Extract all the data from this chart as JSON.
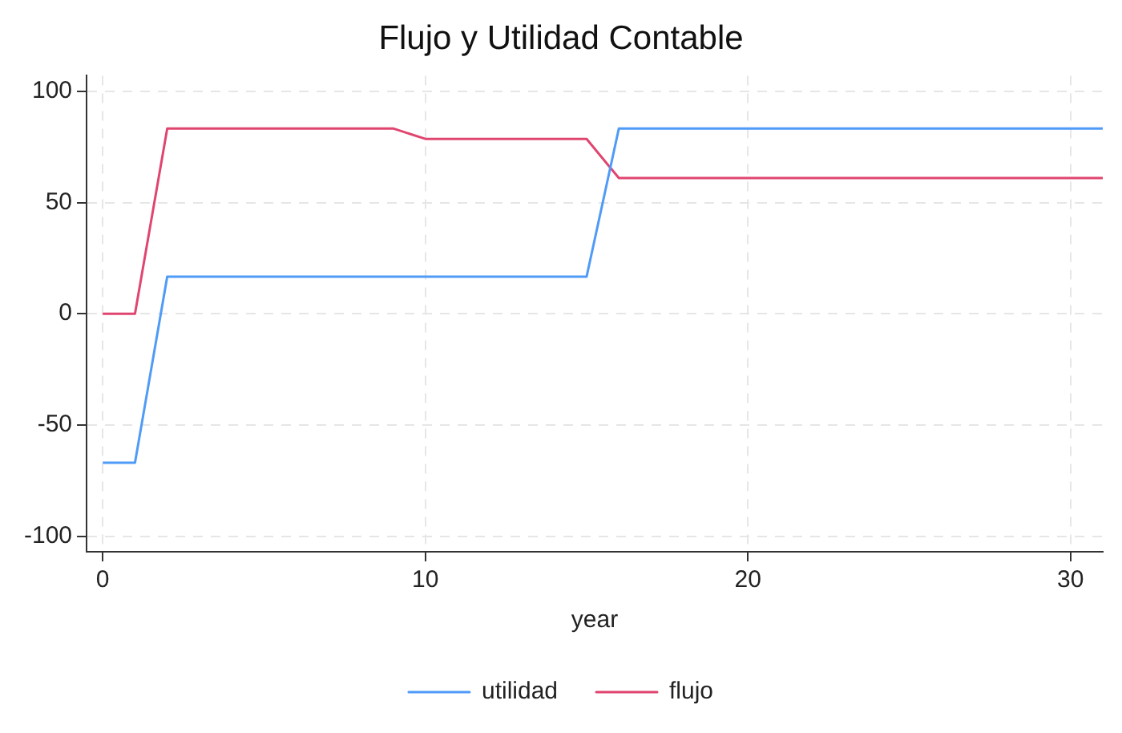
{
  "chart_data": {
    "type": "line",
    "title": "Flujo y Utilidad Contable",
    "xlabel": "year",
    "xlim": [
      -0.5,
      31
    ],
    "xticks": [
      0,
      10,
      20,
      30
    ],
    "ylim": [
      -107,
      107
    ],
    "yticks": [
      -100,
      -50,
      0,
      50,
      100
    ],
    "grid": true,
    "legend": "bottom",
    "marker": "none",
    "line_style": "solid",
    "series": [
      {
        "name": "utilidad",
        "color": "#4f9bf7",
        "x": [
          0,
          1,
          2,
          15,
          16,
          31
        ],
        "values": [
          -67,
          -67,
          16.7,
          16.7,
          83.3,
          83.3
        ]
      },
      {
        "name": "flujo",
        "color": "#e0456f",
        "x": [
          0,
          1,
          2,
          9,
          10,
          15,
          16,
          31
        ],
        "values": [
          0,
          0,
          83.3,
          83.3,
          78.6,
          78.6,
          61,
          61
        ]
      }
    ]
  }
}
